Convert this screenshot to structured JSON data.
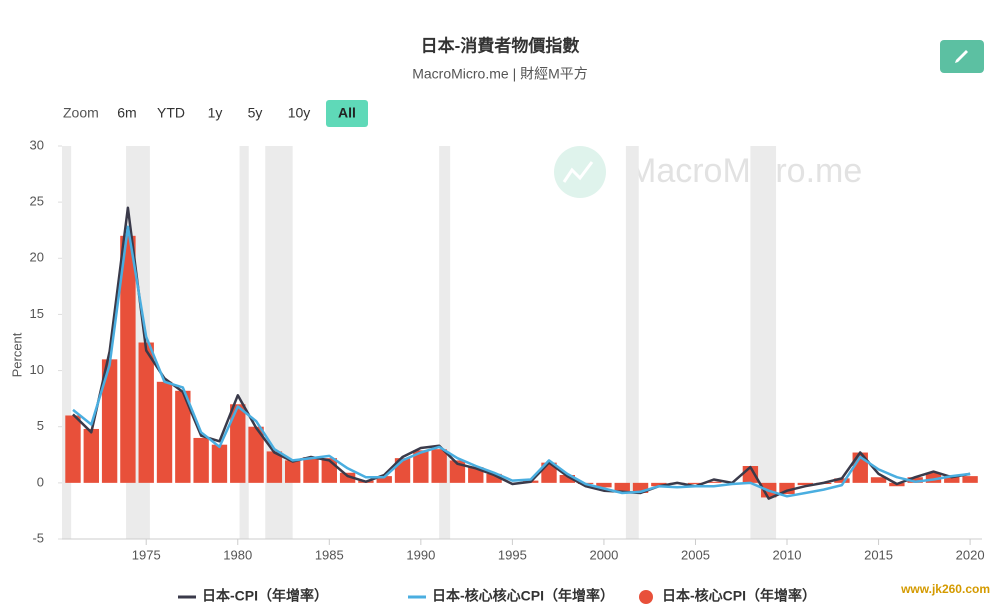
{
  "chart_data": {
    "type": "combo",
    "title": "日本-消費者物價指數",
    "subtitle": "MacroMicro.me | 財經M平方",
    "watermark": "MacroMicro.me",
    "footer_watermark": "www.jk260.com",
    "zoom": {
      "label": "Zoom",
      "buttons": [
        "6m",
        "YTD",
        "1y",
        "5y",
        "10y",
        "All"
      ],
      "selected": "All"
    },
    "y_label": "Percent",
    "xlim": [
      1970.4,
      2020.65
    ],
    "xticks": [
      1975,
      1980,
      1985,
      1990,
      1995,
      2000,
      2005,
      2010,
      2015,
      2020
    ],
    "ylim": [
      -5,
      30
    ],
    "yticks": [
      -5,
      0,
      5,
      10,
      15,
      20,
      25,
      30
    ],
    "grid": false,
    "legend": "bottom",
    "shaded_periods": [
      [
        1970.4,
        1970.9
      ],
      [
        1973.9,
        1975.2
      ],
      [
        1980.1,
        1980.6
      ],
      [
        1981.5,
        1983.0
      ],
      [
        1991.0,
        1991.6
      ],
      [
        2001.2,
        2001.9
      ],
      [
        2008.0,
        2009.4
      ]
    ],
    "shade_color": "#ebebeb",
    "x": [
      1971,
      1972,
      1973,
      1974,
      1975,
      1976,
      1977,
      1978,
      1979,
      1980,
      1981,
      1982,
      1983,
      1984,
      1985,
      1986,
      1987,
      1988,
      1989,
      1990,
      1991,
      1992,
      1993,
      1994,
      1995,
      1996,
      1997,
      1998,
      1999,
      2000,
      2001,
      2002,
      2003,
      2004,
      2005,
      2006,
      2007,
      2008,
      2009,
      2010,
      2011,
      2012,
      2013,
      2014,
      2015,
      2016,
      2017,
      2018,
      2019,
      2020
    ],
    "series": [
      {
        "name": "日本-核心CPI（年增率）",
        "type": "bar",
        "color": "#e8503a",
        "values": [
          6.0,
          4.8,
          11.0,
          22.0,
          12.5,
          9.0,
          8.2,
          4.0,
          3.4,
          7.0,
          5.0,
          2.8,
          2.0,
          2.3,
          2.2,
          0.9,
          0.2,
          0.6,
          2.2,
          2.9,
          3.0,
          2.0,
          1.4,
          0.8,
          0.0,
          0.2,
          1.8,
          0.7,
          -0.1,
          -0.4,
          -0.8,
          -0.9,
          -0.3,
          -0.1,
          -0.1,
          0.1,
          0.0,
          1.5,
          -1.3,
          -1.0,
          -0.2,
          -0.1,
          0.4,
          2.7,
          0.5,
          -0.3,
          0.5,
          0.9,
          0.7,
          0.6
        ]
      },
      {
        "name": "日本-CPI（年增率）",
        "type": "line",
        "color": "#3a3a4a",
        "values": [
          6.1,
          4.5,
          11.7,
          24.5,
          11.8,
          9.3,
          8.1,
          4.2,
          3.7,
          7.8,
          4.9,
          2.7,
          1.9,
          2.3,
          2.0,
          0.6,
          0.1,
          0.7,
          2.3,
          3.1,
          3.3,
          1.7,
          1.3,
          0.7,
          -0.1,
          0.1,
          1.8,
          0.6,
          -0.3,
          -0.7,
          -0.8,
          -0.9,
          -0.3,
          0.0,
          -0.3,
          0.3,
          0.0,
          1.4,
          -1.4,
          -0.7,
          -0.3,
          0.0,
          0.4,
          2.7,
          0.8,
          -0.1,
          0.5,
          1.0,
          0.5,
          0.8
        ]
      },
      {
        "name": "日本-核心核心CPI（年增率）",
        "type": "line",
        "color": "#4aaee0",
        "values": [
          6.5,
          5.2,
          10.5,
          22.8,
          13.0,
          9.0,
          8.5,
          4.5,
          3.2,
          6.8,
          5.5,
          3.0,
          2.0,
          2.2,
          2.4,
          1.3,
          0.5,
          0.5,
          2.0,
          2.7,
          3.2,
          2.2,
          1.5,
          0.9,
          0.2,
          0.3,
          2.0,
          0.8,
          -0.1,
          -0.5,
          -0.9,
          -0.8,
          -0.3,
          -0.4,
          -0.3,
          -0.3,
          -0.1,
          0.0,
          -0.7,
          -1.2,
          -0.9,
          -0.6,
          -0.2,
          2.3,
          1.2,
          0.5,
          0.1,
          0.3,
          0.6,
          0.8
        ]
      }
    ]
  }
}
